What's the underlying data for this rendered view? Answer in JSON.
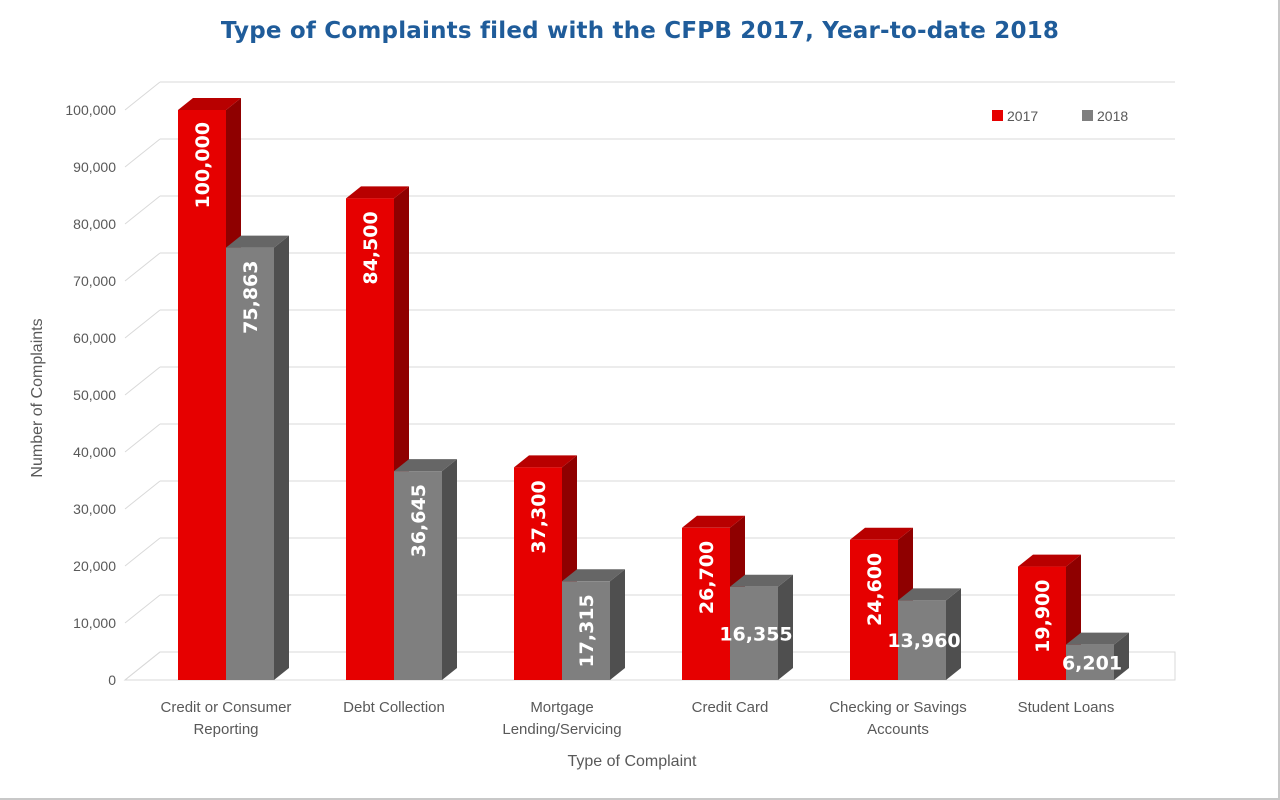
{
  "chart_data": {
    "type": "bar",
    "title": "Type of Complaints filed with the CFPB 2017, Year-to-date 2018",
    "xlabel": "Type of Complaint",
    "ylabel": "Number of Complaints",
    "ylim": [
      0,
      100000
    ],
    "yticks": [
      "0",
      "10,000",
      "20,000",
      "30,000",
      "40,000",
      "50,000",
      "60,000",
      "70,000",
      "80,000",
      "90,000",
      "100,000"
    ],
    "categories": [
      [
        "Credit or Consumer",
        "Reporting"
      ],
      [
        "Debt Collection"
      ],
      [
        "Mortgage",
        "Lending/Servicing"
      ],
      [
        "Credit Card"
      ],
      [
        "Checking or Savings",
        "Accounts"
      ],
      [
        "Student Loans"
      ]
    ],
    "series": [
      {
        "name": "2017",
        "color": "#e60000",
        "values": [
          100000,
          84500,
          37300,
          26700,
          24600,
          19900
        ],
        "labels": [
          "100,000",
          "84,500",
          "37,300",
          "26,700",
          "24,600",
          "19,900"
        ]
      },
      {
        "name": "2018",
        "color": "#7f7f7f",
        "values": [
          75863,
          36645,
          17315,
          16355,
          13960,
          6201
        ],
        "labels": [
          "75,863",
          "36,645",
          "17,315",
          "16,355",
          "13,960",
          "6,201"
        ]
      }
    ],
    "grid": true,
    "legend_position": "top-right",
    "style": "3d-column"
  }
}
